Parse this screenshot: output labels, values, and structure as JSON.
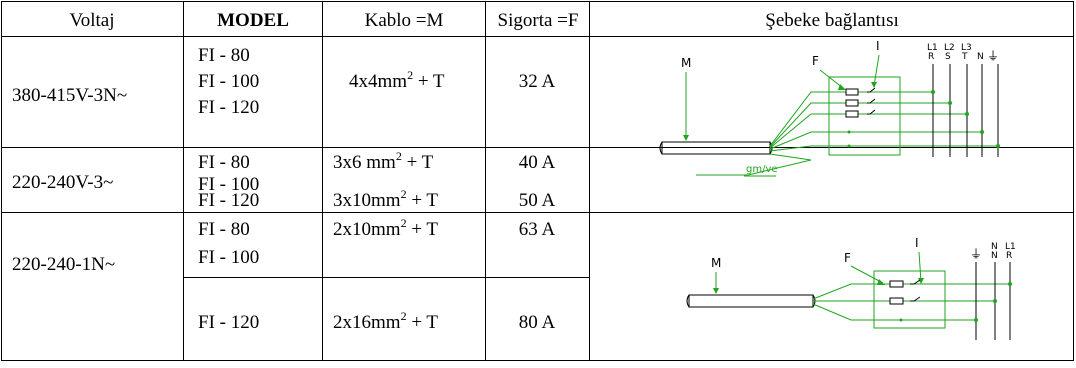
{
  "headers": {
    "voltage": "Voltaj",
    "model": "MODEL",
    "cable": "Kablo =M",
    "fuse": "Sigorta =F",
    "connection": "Şebeke bağlantısı"
  },
  "rows": [
    {
      "voltage": "380-415V-3N~",
      "models": [
        "FI - 80",
        "FI - 100",
        "FI - 120"
      ],
      "cable": {
        "main": "4x4mm",
        "sup": "2",
        "tail": " + T"
      },
      "fuse": "32 A"
    },
    {
      "voltage": "220-240V-3~",
      "models": [
        "FI - 80",
        "FI - 100",
        "FI - 120"
      ],
      "cable_a": {
        "main": "3x6 mm",
        "sup": "2",
        "tail": " + T"
      },
      "cable_b": {
        "main": "3x10mm",
        "sup": "2",
        "tail": " + T"
      },
      "fuse_a": "40 A",
      "fuse_b": "50 A"
    },
    {
      "voltage": "220-240-1N~",
      "models_a": [
        "FI - 80",
        "FI - 100"
      ],
      "model_b": "FI - 120",
      "cable_a": {
        "main": "2x10mm",
        "sup": "2",
        "tail": " + T"
      },
      "cable_b": {
        "main": "2x16mm",
        "sup": "2",
        "tail": " + T"
      },
      "fuse_a": "63 A",
      "fuse_b": "80 A"
    }
  ],
  "diagram_three_phase": {
    "label_m": "M",
    "label_f": "F",
    "label_i": "I",
    "terminals_top": [
      "L1",
      "L2",
      "L3"
    ],
    "terminals_bottom": [
      "R",
      "S",
      "T"
    ],
    "neutral": "N",
    "ground": "⏚",
    "wire_label": "gm/ve"
  },
  "diagram_single_phase": {
    "label_m": "M",
    "label_f": "F",
    "label_i": "I",
    "ground": "⏚",
    "neutral_top": "N",
    "neutral_bottom": "N",
    "phase_top": "L1",
    "phase_bottom": "R"
  },
  "colors": {
    "border": "#000000",
    "wire": "#1fa51f"
  }
}
